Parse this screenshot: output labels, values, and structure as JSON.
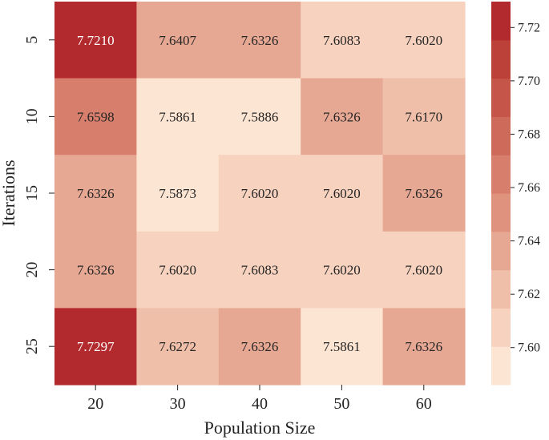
{
  "chart_data": {
    "type": "heatmap",
    "title": "",
    "xlabel": "Population Size",
    "ylabel": "Iterations",
    "x_categories": [
      "20",
      "30",
      "40",
      "50",
      "60"
    ],
    "y_categories": [
      "5",
      "10",
      "15",
      "20",
      "25"
    ],
    "values": [
      [
        7.721,
        7.6407,
        7.6326,
        7.6083,
        7.602
      ],
      [
        7.6598,
        7.5861,
        7.5886,
        7.6326,
        7.617
      ],
      [
        7.6326,
        7.5873,
        7.602,
        7.602,
        7.6326
      ],
      [
        7.6326,
        7.602,
        7.6083,
        7.602,
        7.602
      ],
      [
        7.7297,
        7.6272,
        7.6326,
        7.5861,
        7.6326
      ]
    ],
    "value_format": "4 decimals",
    "colorbar": {
      "vmin": 7.5861,
      "vmax": 7.7297,
      "ticks": [
        7.6,
        7.62,
        7.64,
        7.66,
        7.68,
        7.7,
        7.72
      ],
      "tick_labels": [
        "7.60",
        "7.62",
        "7.64",
        "7.66",
        "7.68",
        "7.70",
        "7.72"
      ],
      "levels": 10,
      "colormap": [
        "#fde5d3",
        "#f7d2bf",
        "#efbfa9",
        "#e7a893",
        "#df937f",
        "#d77e6c",
        "#cd6a59",
        "#c55548",
        "#bc4138",
        "#b32a2e"
      ]
    },
    "grid": false
  }
}
